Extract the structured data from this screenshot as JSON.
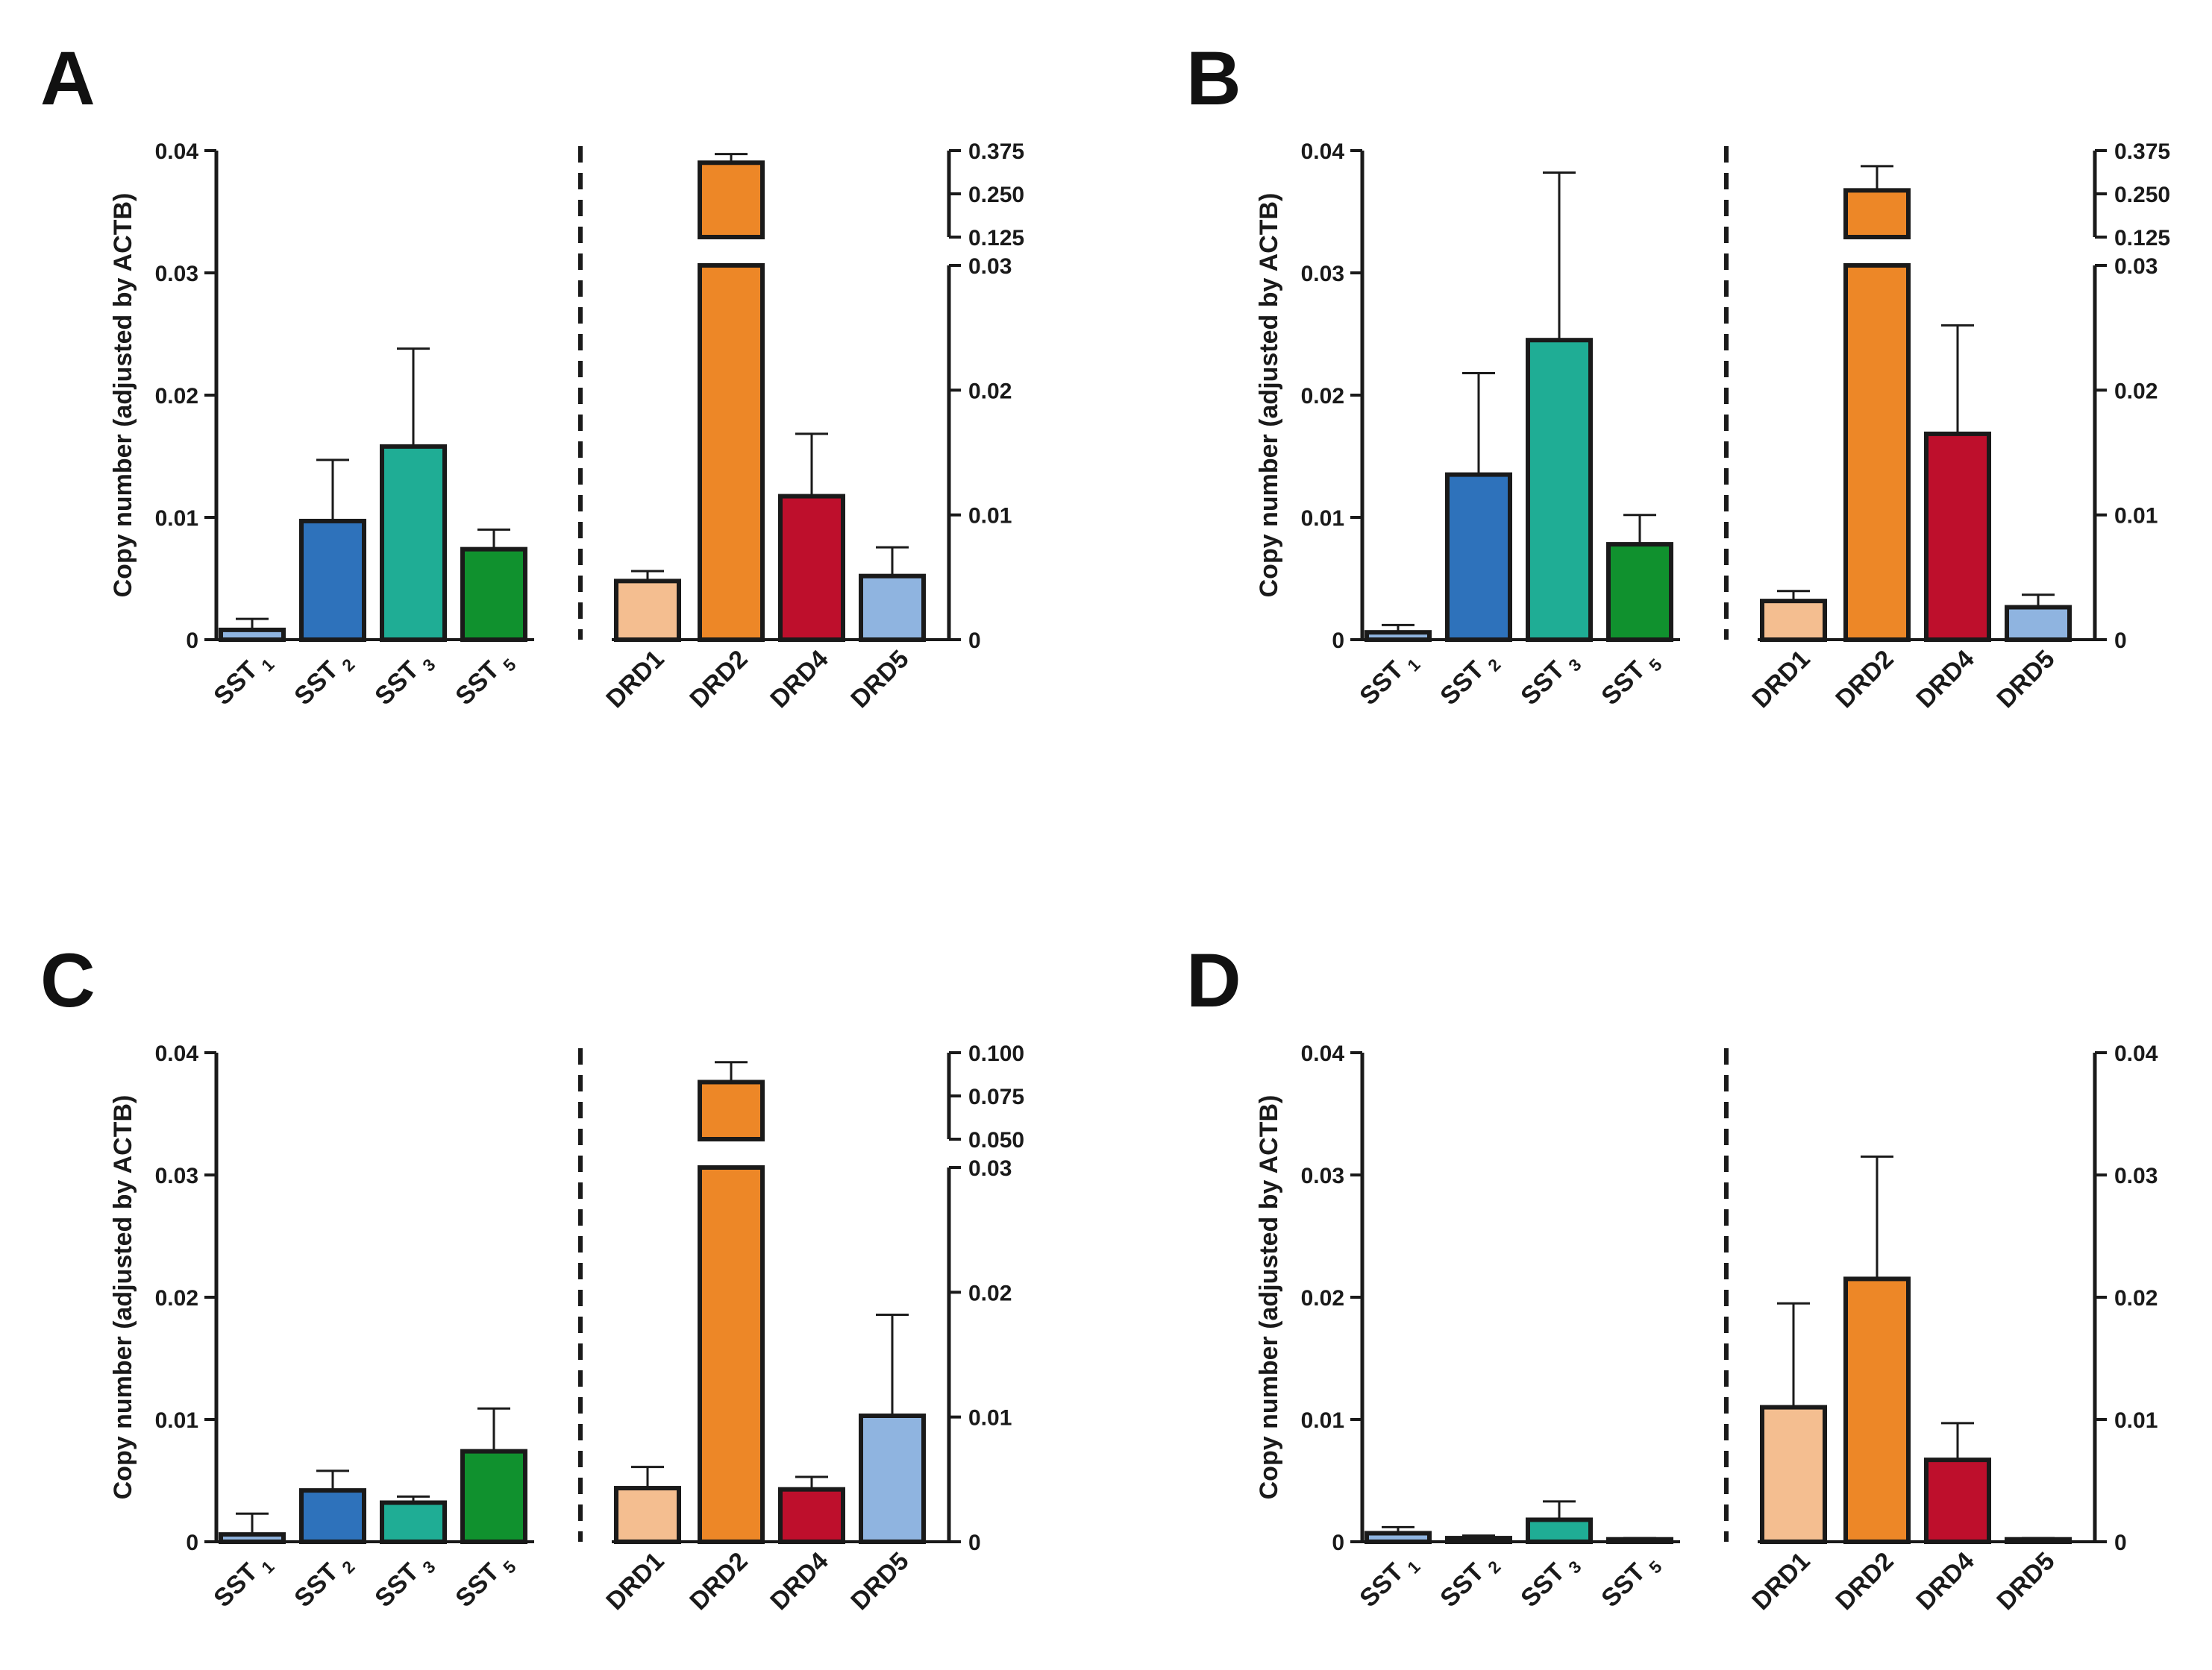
{
  "chart_data": [
    {
      "panel": "A",
      "type": "bar",
      "ylabel": "Copy number (adjusted by ACTB)",
      "groups": [
        {
          "name": "SST",
          "categories": [
            "1",
            "2",
            "3",
            "5"
          ],
          "values": [
            0.0008,
            0.0097,
            0.0158,
            0.0074
          ],
          "errors": [
            0.0009,
            0.005,
            0.008,
            0.0016
          ],
          "colors": [
            "#8fb4e0",
            "#2e72bb",
            "#1fad95",
            "#10912e"
          ]
        },
        {
          "name": "DRD",
          "categories": [
            "DRD1",
            "DRD2",
            "DRD4",
            "DRD5"
          ],
          "values": [
            0.0047,
            0.34,
            0.0115,
            0.0051
          ],
          "errors": [
            0.0008,
            0.025,
            0.005,
            0.0023
          ],
          "colors": [
            "#f4be90",
            "#ed8727",
            "#be0f2c",
            "#8fb4e0"
          ]
        }
      ],
      "left_axis": {
        "ylim": [
          0,
          0.04
        ],
        "ticks": [
          "0",
          "0.01",
          "0.02",
          "0.03",
          "0.04"
        ]
      },
      "right_axis": {
        "lower_ylim": [
          0,
          0.03
        ],
        "lower_ticks": [
          "0",
          "0.01",
          "0.02",
          "0.03"
        ],
        "upper_ylim": [
          0.125,
          0.375
        ],
        "upper_ticks": [
          "0.125",
          "0.250",
          "0.375"
        ]
      }
    },
    {
      "panel": "B",
      "type": "bar",
      "ylabel": "Copy number (adjusted by ACTB)",
      "groups": [
        {
          "name": "SST",
          "categories": [
            "1",
            "2",
            "3",
            "5"
          ],
          "values": [
            0.0006,
            0.0135,
            0.0245,
            0.0078
          ],
          "errors": [
            0.0006,
            0.0083,
            0.0137,
            0.0024
          ],
          "colors": [
            "#8fb4e0",
            "#2e72bb",
            "#1fad95",
            "#10912e"
          ]
        },
        {
          "name": "DRD",
          "categories": [
            "DRD1",
            "DRD2",
            "DRD4",
            "DRD5"
          ],
          "values": [
            0.0031,
            0.26,
            0.0165,
            0.0026
          ],
          "errors": [
            0.0008,
            0.07,
            0.0087,
            0.001
          ],
          "colors": [
            "#f4be90",
            "#ed8727",
            "#be0f2c",
            "#8fb4e0"
          ]
        }
      ],
      "left_axis": {
        "ylim": [
          0,
          0.04
        ],
        "ticks": [
          "0",
          "0.01",
          "0.02",
          "0.03",
          "0.04"
        ]
      },
      "right_axis": {
        "lower_ylim": [
          0,
          0.03
        ],
        "lower_ticks": [
          "0",
          "0.01",
          "0.02",
          "0.03"
        ],
        "upper_ylim": [
          0.125,
          0.375
        ],
        "upper_ticks": [
          "0.125",
          "0.250",
          "0.375"
        ]
      }
    },
    {
      "panel": "C",
      "type": "bar",
      "ylabel": "Copy number (adjusted by ACTB)",
      "groups": [
        {
          "name": "SST",
          "categories": [
            "1",
            "2",
            "3",
            "5"
          ],
          "values": [
            0.0006,
            0.0042,
            0.0032,
            0.0074
          ],
          "errors": [
            0.0017,
            0.0016,
            0.0005,
            0.0035
          ],
          "colors": [
            "#8fb4e0",
            "#2e72bb",
            "#1fad95",
            "#10912e"
          ]
        },
        {
          "name": "DRD",
          "categories": [
            "DRD1",
            "DRD2",
            "DRD4",
            "DRD5"
          ],
          "values": [
            0.0043,
            0.083,
            0.0042,
            0.0101
          ],
          "errors": [
            0.0017,
            0.0115,
            0.001,
            0.0081
          ],
          "colors": [
            "#f4be90",
            "#ed8727",
            "#be0f2c",
            "#8fb4e0"
          ]
        }
      ],
      "left_axis": {
        "ylim": [
          0,
          0.04
        ],
        "ticks": [
          "0",
          "0.01",
          "0.02",
          "0.03",
          "0.04"
        ]
      },
      "right_axis": {
        "lower_ylim": [
          0,
          0.03
        ],
        "lower_ticks": [
          "0",
          "0.01",
          "0.02",
          "0.03"
        ],
        "upper_ylim": [
          0.05,
          0.1
        ],
        "upper_ticks": [
          "0.050",
          "0.075",
          "0.100"
        ]
      }
    },
    {
      "panel": "D",
      "type": "bar",
      "ylabel": "Copy number (adjusted by ACTB)",
      "groups": [
        {
          "name": "SST",
          "categories": [
            "1",
            "2",
            "3",
            "5"
          ],
          "values": [
            0.0007,
            0.0003,
            0.0018,
            0.0002
          ],
          "errors": [
            0.0005,
            0.0002,
            0.0015,
            0.0001
          ],
          "colors": [
            "#8fb4e0",
            "#2e72bb",
            "#1fad95",
            "#10912e"
          ]
        },
        {
          "name": "DRD",
          "categories": [
            "DRD1",
            "DRD2",
            "DRD4",
            "DRD5"
          ],
          "values": [
            0.011,
            0.0215,
            0.0067,
            0.0002
          ],
          "errors": [
            0.0085,
            0.01,
            0.003,
            0.0001
          ],
          "colors": [
            "#f4be90",
            "#ed8727",
            "#be0f2c",
            "#8fb4e0"
          ]
        }
      ],
      "left_axis": {
        "ylim": [
          0,
          0.04
        ],
        "ticks": [
          "0",
          "0.01",
          "0.02",
          "0.03",
          "0.04"
        ]
      },
      "right_axis": {
        "lower_ylim": [
          0,
          0.04
        ],
        "lower_ticks": [
          "0",
          "0.01",
          "0.02",
          "0.03",
          "0.04"
        ]
      }
    }
  ]
}
